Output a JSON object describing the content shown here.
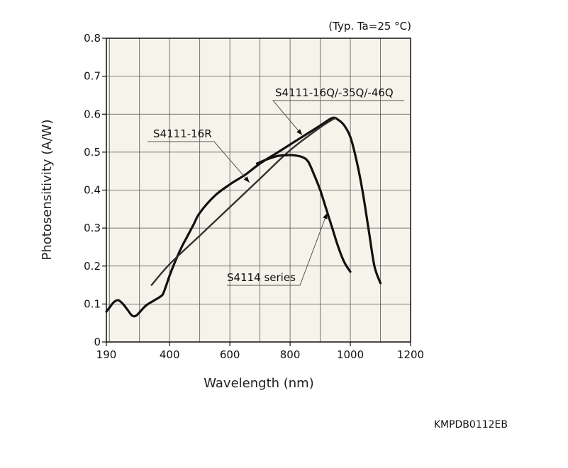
{
  "chart_data": {
    "type": "line",
    "note": "(Typ. Ta=25 °C)",
    "xlabel": "Wavelength (nm)",
    "ylabel": "Photosensitivity (A/W)",
    "xlim": [
      190,
      1200
    ],
    "ylim": [
      0,
      0.8
    ],
    "xticks": [
      "190",
      "400",
      "600",
      "800",
      "1000",
      "1200"
    ],
    "yticks": [
      "0",
      "0.1",
      "0.2",
      "0.3",
      "0.4",
      "0.5",
      "0.6",
      "0.7",
      "0.8"
    ],
    "grid": true,
    "series": [
      {
        "name": "S4111-16Q/-35Q/-46Q",
        "x": [
          190,
          200,
          215,
          230,
          245,
          260,
          275,
          290,
          320,
          350,
          370,
          380,
          400,
          420,
          440,
          460,
          480,
          500,
          550,
          600,
          650,
          700,
          750,
          800,
          850,
          900,
          940,
          960,
          980,
          1000,
          1020,
          1040,
          1060,
          1080,
          1100
        ],
        "y": [
          0.08,
          0.09,
          0.105,
          0.11,
          0.1,
          0.085,
          0.07,
          0.07,
          0.095,
          0.11,
          0.12,
          0.13,
          0.175,
          0.215,
          0.25,
          0.28,
          0.31,
          0.34,
          0.385,
          0.415,
          0.44,
          0.47,
          0.495,
          0.52,
          0.545,
          0.57,
          0.59,
          0.585,
          0.57,
          0.54,
          0.48,
          0.4,
          0.3,
          0.2,
          0.155
        ]
      },
      {
        "name": "S4111-16R",
        "x": [
          340,
          400,
          500,
          600,
          700,
          800,
          900,
          950
        ],
        "y": [
          0.15,
          0.205,
          0.28,
          0.355,
          0.43,
          0.505,
          0.565,
          0.59
        ]
      },
      {
        "name": "S4114 series",
        "x": [
          690,
          720,
          760,
          790,
          810,
          840,
          860,
          880,
          900,
          920,
          940,
          960,
          980,
          1000
        ],
        "y": [
          0.47,
          0.48,
          0.49,
          0.492,
          0.492,
          0.487,
          0.475,
          0.44,
          0.4,
          0.35,
          0.3,
          0.25,
          0.21,
          0.185
        ]
      }
    ]
  },
  "doc_code": "KMPDB0112EB"
}
